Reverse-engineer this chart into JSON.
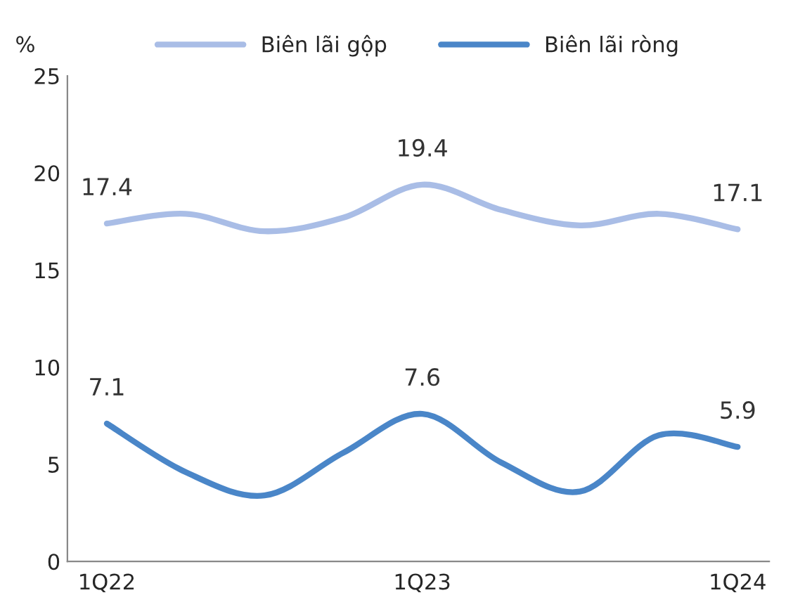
{
  "chart_data": {
    "type": "line",
    "ylabel": "%",
    "categories": [
      "1Q22",
      null,
      null,
      null,
      "1Q23",
      null,
      null,
      null,
      "1Q24"
    ],
    "series": [
      {
        "name": "Biên lãi gộp",
        "color": "#a9bde6",
        "values": [
          17.4,
          17.9,
          17.0,
          17.7,
          19.4,
          18.1,
          17.3,
          17.9,
          17.1
        ],
        "value_labels": [
          "17.4",
          null,
          null,
          null,
          "19.4",
          null,
          null,
          null,
          "17.1"
        ]
      },
      {
        "name": "Biên lãi ròng",
        "color": "#4a86c8",
        "values": [
          7.1,
          4.6,
          3.4,
          5.6,
          7.6,
          5.1,
          3.6,
          6.5,
          5.9
        ],
        "value_labels": [
          "7.1",
          null,
          null,
          null,
          "7.6",
          null,
          null,
          null,
          "5.9"
        ]
      }
    ],
    "ylim": [
      0,
      25
    ],
    "yticks": [
      0,
      5,
      10,
      15,
      20,
      25
    ],
    "grid": false,
    "legend": "top",
    "marker": "none",
    "line_style": "solid"
  }
}
